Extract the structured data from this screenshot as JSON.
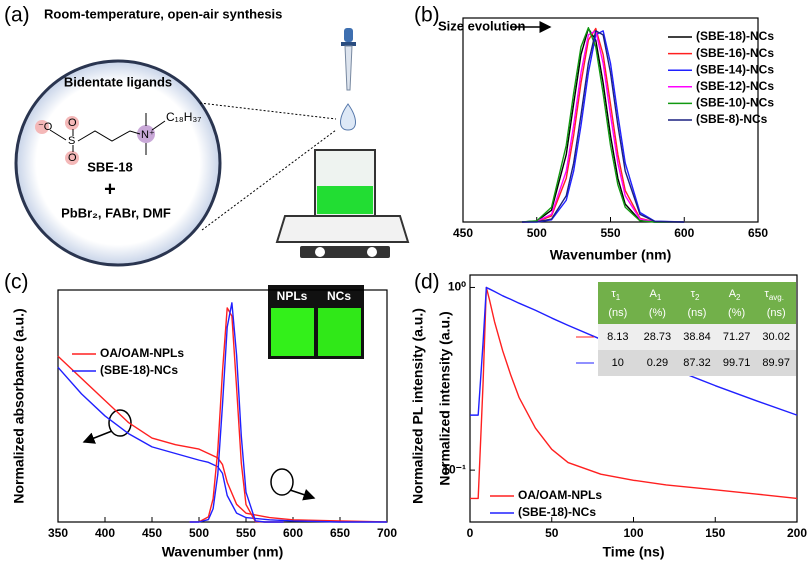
{
  "panels": [
    "(a)",
    "(b)",
    "(c)",
    "(d)"
  ],
  "schematic": {
    "title": "Room-temperature, open-air synthesis",
    "heading": "Bidentate ligands",
    "atoms": [
      "⁻O",
      "O",
      "O",
      "S",
      "N⁺"
    ],
    "chain": "C₁₈H₃₇",
    "ligand": "SBE-18",
    "plus": "+",
    "reagents": "PbBr₂, FABr,  DMF"
  },
  "chart_data": [
    {
      "type": "line",
      "title": "Size evolution",
      "x_label": "Wavenumber (nm)",
      "x": [
        490,
        500,
        510,
        520,
        525,
        530,
        535,
        540,
        545,
        550,
        555,
        560,
        570,
        580,
        600
      ],
      "xlim": [
        450,
        650
      ],
      "xticks": [
        450,
        500,
        550,
        600,
        650
      ],
      "ylim": [
        0,
        1.05
      ],
      "legend": "upper right",
      "series": [
        {
          "name": "(SBE-18)-NCs",
          "color": "#000000",
          "values": [
            0,
            0.005,
            0.061,
            0.347,
            0.607,
            0.862,
            0.996,
            0.936,
            0.716,
            0.445,
            0.225,
            0.092,
            0.008,
            0,
            0
          ]
        },
        {
          "name": "(SBE-16)-NCs",
          "color": "#ff2020",
          "values": [
            0,
            0.002,
            0.031,
            0.225,
            0.445,
            0.716,
            0.936,
            0.996,
            0.862,
            0.607,
            0.347,
            0.162,
            0.019,
            0.001,
            0
          ]
        },
        {
          "name": "(SBE-14)-NCs",
          "color": "#2020ff",
          "values": [
            0,
            0,
            0.011,
            0.112,
            0.262,
            0.497,
            0.768,
            0.963,
            0.984,
            0.817,
            0.551,
            0.303,
            0.049,
            0.004,
            0
          ]
        },
        {
          "name": "(SBE-12)-NCs",
          "color": "#ff00ff",
          "values": [
            0,
            0.003,
            0.039,
            0.262,
            0.497,
            0.768,
            0.963,
            0.984,
            0.817,
            0.551,
            0.303,
            0.135,
            0.015,
            0.001,
            0
          ]
        },
        {
          "name": "(SBE-10)-NCs",
          "color": "#119911",
          "values": [
            0,
            0.006,
            0.076,
            0.395,
            0.662,
            0.902,
            1,
            0.902,
            0.662,
            0.395,
            0.192,
            0.076,
            0.006,
            0,
            0
          ]
        },
        {
          "name": "(SBE-8)-NCs",
          "color": "#1a2080",
          "values": [
            0,
            0.001,
            0.015,
            0.135,
            0.303,
            0.551,
            0.817,
            0.984,
            0.963,
            0.768,
            0.497,
            0.262,
            0.039,
            0.003,
            0
          ]
        }
      ]
    },
    {
      "type": "line",
      "x_label": "Wavenumber (nm)",
      "y_label": "Normalized absorbance (a.u.)",
      "y2_label": "Normalized PL intensity (a.u.)",
      "xlim": [
        350,
        700
      ],
      "xticks": [
        350,
        400,
        450,
        500,
        550,
        600,
        650,
        700
      ],
      "ylim": [
        0,
        1.05
      ],
      "y2lim": [
        0,
        1.05
      ],
      "legend": "upper left",
      "inset_labels": [
        "NPLs",
        "NCs"
      ],
      "series": [
        {
          "name": "OA/OAM-NPLs",
          "color": "#ff2020",
          "x": [
            350,
            375,
            400,
            425,
            450,
            475,
            500,
            510,
            520,
            525,
            530,
            540,
            550,
            575,
            600,
            650,
            700
          ],
          "values": [
            0.75,
            0.65,
            0.55,
            0.45,
            0.38,
            0.35,
            0.33,
            0.31,
            0.29,
            0.26,
            0.18,
            0.08,
            0.04,
            0.02,
            0.01,
            0.005,
            0
          ]
        },
        {
          "name": "(SBE-18)-NCs",
          "color": "#2020ff",
          "x": [
            350,
            375,
            400,
            425,
            450,
            475,
            500,
            510,
            520,
            525,
            530,
            540,
            550,
            575,
            600,
            650,
            700
          ],
          "values": [
            0.7,
            0.58,
            0.48,
            0.4,
            0.34,
            0.31,
            0.28,
            0.27,
            0.25,
            0.22,
            0.12,
            0.04,
            0.02,
            0.01,
            0.005,
            0,
            0
          ]
        },
        {
          "color": "#ff2020",
          "axis": "y2",
          "x": [
            490,
            500,
            510,
            515,
            520,
            525,
            530,
            535,
            540,
            545,
            550,
            560,
            570,
            590
          ],
          "values": [
            0,
            0.0003,
            0.023,
            0.105,
            0.325,
            0.682,
            0.969,
            0.932,
            0.607,
            0.267,
            0.079,
            0.002,
            0,
            0
          ]
        },
        {
          "color": "#2020ff",
          "axis": "y2",
          "x": [
            490,
            500,
            510,
            515,
            520,
            525,
            530,
            535,
            540,
            545,
            550,
            560,
            570,
            590
          ],
          "values": [
            0,
            0,
            0.011,
            0.06,
            0.216,
            0.531,
            0.882,
            0.992,
            0.755,
            0.389,
            0.135,
            0.005,
            0,
            0
          ]
        }
      ]
    },
    {
      "type": "line",
      "x_label": "Time (ns)",
      "y_label": "Normalized intensity (a.u.)",
      "log_y": true,
      "x": [
        0,
        5,
        8,
        10,
        12,
        15,
        20,
        25,
        30,
        40,
        50,
        60,
        80,
        100,
        120,
        150,
        175,
        200
      ],
      "xlim": [
        0,
        200
      ],
      "xticks": [
        0,
        50,
        100,
        150,
        200
      ],
      "ylim": [
        0.052,
        1.17
      ],
      "yticks": [
        {
          "value": 0.1,
          "label": "10⁻¹"
        },
        {
          "value": 1,
          "label": "10⁰"
        }
      ],
      "legend": "lower left",
      "series": [
        {
          "name": "OA/OAM-NPLs",
          "color": "#ff2020",
          "values": [
            0.07,
            0.07,
            0.3,
            1.0,
            0.85,
            0.65,
            0.45,
            0.33,
            0.25,
            0.17,
            0.13,
            0.11,
            0.095,
            0.088,
            0.083,
            0.078,
            0.074,
            0.07
          ]
        },
        {
          "name": "(SBE-18)-NCs",
          "color": "#2020ff",
          "values": [
            0.2,
            0.2,
            0.5,
            1.0,
            0.98,
            0.95,
            0.9,
            0.86,
            0.82,
            0.75,
            0.68,
            0.62,
            0.52,
            0.44,
            0.37,
            0.29,
            0.24,
            0.2
          ]
        }
      ],
      "table": {
        "columns": [
          {
            "symbol": "τ",
            "sub": "1",
            "unit": "(ns)"
          },
          {
            "symbol": "A",
            "sub": "1",
            "unit": "(%)"
          },
          {
            "symbol": "τ",
            "sub": "2",
            "unit": "(ns)"
          },
          {
            "symbol": "A",
            "sub": "2",
            "unit": "(%)"
          },
          {
            "symbol": "τ",
            "sub": "avg.",
            "unit": "(ns)"
          }
        ],
        "rows": [
          [
            "8.13",
            "28.73",
            "38.84",
            "71.27",
            "30.02"
          ],
          [
            "10",
            "0.29",
            "87.32",
            "99.71",
            "89.97"
          ]
        ]
      }
    }
  ]
}
